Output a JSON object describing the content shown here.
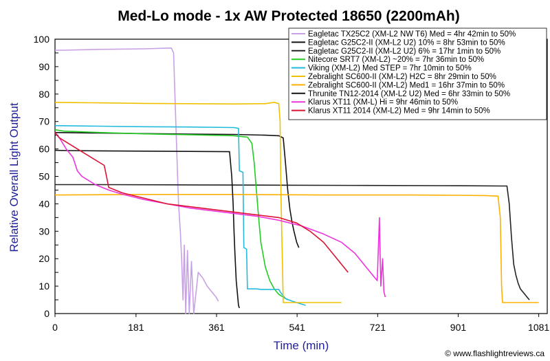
{
  "colors": {
    "axis_label": "#1f1f9a",
    "frame": "#000000",
    "grid": "#000000"
  },
  "chart_data": {
    "type": "line",
    "title": "Med-Lo mode - 1x AW Protected 18650 (2200mAh)",
    "xlabel": "Time (min)",
    "ylabel": "Relative Overall Light Output",
    "credit": "© www.flashlightreviews.ca",
    "xlim": [
      0,
      1100
    ],
    "ylim": [
      0,
      100
    ],
    "xticks": [
      0,
      181,
      361,
      541,
      721,
      901,
      1081
    ],
    "yticks": [
      0,
      5,
      10,
      15,
      20,
      25,
      30,
      35,
      40,
      45,
      50,
      55,
      60,
      65,
      70,
      75,
      80,
      85,
      90,
      95,
      100
    ],
    "grid": false,
    "legend_position": "top-right",
    "series": [
      {
        "name": "Eagletac TX25C2 (XM-L2 NW T6) Med = 4hr 42min to 50%",
        "color": "#c8a0e6",
        "x": [
          0,
          20,
          100,
          200,
          260,
          265,
          268,
          272,
          276,
          280,
          283,
          286,
          289,
          292,
          296,
          300,
          305,
          310,
          320,
          330,
          340,
          350,
          360,
          365
        ],
        "y": [
          96,
          96,
          96.3,
          96.5,
          96.8,
          95,
          80,
          60,
          40,
          30,
          20,
          5,
          25,
          0,
          23,
          0,
          19,
          0,
          15,
          13,
          10,
          8,
          6,
          4.5
        ]
      },
      {
        "name": "Eagletac G25C2-II (XM-L2 U2) 10% = 8hr 53min to 50%",
        "color": "#111111",
        "x": [
          0,
          100,
          200,
          300,
          400,
          470,
          500,
          510,
          515,
          520,
          525,
          530,
          534,
          540,
          545
        ],
        "y": [
          66,
          65.8,
          65.6,
          65.4,
          65.3,
          65,
          64.8,
          64,
          55,
          45,
          38,
          33,
          30,
          26,
          24
        ]
      },
      {
        "name": "Eagletac G25C2-II (XM-L2 U2) 6% = 17hr 1min to 50%",
        "color": "#222222",
        "x": [
          0,
          100,
          300,
          500,
          700,
          900,
          1000,
          1010,
          1015,
          1020,
          1025,
          1030,
          1035,
          1040,
          1045,
          1050,
          1055,
          1060
        ],
        "y": [
          47,
          47,
          46.9,
          46.8,
          46.7,
          46.6,
          46.5,
          46.5,
          40,
          28,
          18,
          14,
          11,
          9,
          8,
          7,
          6,
          5
        ]
      },
      {
        "name": "Nitecore SRT7 (XM-L2) ~20% = 7hr 36min to 50%",
        "color": "#22cc22",
        "x": [
          0,
          20,
          100,
          200,
          300,
          400,
          430,
          440,
          445,
          450,
          455,
          460,
          470,
          480,
          490,
          500,
          520
        ],
        "y": [
          67,
          66.5,
          66,
          65.5,
          65.2,
          64.8,
          64.3,
          62,
          55,
          45,
          35,
          26,
          17,
          12,
          9,
          7,
          5
        ]
      },
      {
        "name": "Viking (XM-L2) Med STEP = 7hr 10min to 50%",
        "color": "#22bbdd",
        "x": [
          0,
          100,
          200,
          300,
          400,
          410,
          412,
          420,
          422,
          428,
          430,
          450,
          460,
          470,
          480,
          490,
          500,
          505,
          515,
          530,
          540,
          550,
          560
        ],
        "y": [
          68.5,
          68.3,
          68.1,
          68,
          67.8,
          67.5,
          52,
          51.5,
          24,
          23.5,
          9,
          9,
          8.8,
          8.8,
          8.8,
          8.8,
          8.8,
          7.5,
          5.5,
          4.5,
          4,
          3.5,
          3
        ]
      },
      {
        "name": "Zebralight SC600-II (XM-L2) H2C = 8hr 29min to 50%",
        "color": "#f0c000",
        "x": [
          0,
          100,
          200,
          300,
          400,
          470,
          490,
          500,
          503,
          505,
          510,
          520,
          540,
          560,
          580,
          600,
          620,
          640
        ],
        "y": [
          77,
          76.8,
          76.6,
          76.5,
          76.4,
          76.5,
          77,
          76.5,
          70,
          43,
          4,
          4,
          4,
          4,
          4,
          4,
          4,
          4
        ]
      },
      {
        "name": "Zebralight SC600-II (XM-L2) Med1 = 16hr 37min to 50%",
        "color": "#ffb000",
        "x": [
          0,
          100,
          200,
          300,
          400,
          500,
          600,
          700,
          800,
          900,
          960,
          990,
          995,
          998,
          1000,
          1020,
          1040,
          1060,
          1081
        ],
        "y": [
          43.2,
          43.3,
          43.4,
          43.4,
          43.4,
          43.3,
          43.2,
          43.2,
          43.2,
          43.1,
          43,
          42.8,
          35,
          10,
          4,
          4,
          4,
          4,
          4
        ]
      },
      {
        "name": "Thrunite TN12-2014 (XM-L2 U2) Med = 6hr 33min to 50%",
        "color": "#111111",
        "x": [
          0,
          30,
          100,
          200,
          300,
          390,
          395,
          398,
          400,
          402,
          405,
          410,
          412
        ],
        "y": [
          59.5,
          59.4,
          59.3,
          59.2,
          59.1,
          59,
          50,
          40,
          30,
          22,
          12,
          3,
          2
        ]
      },
      {
        "name": "Klarus XT11 (XM-L) Hi = 9hr 46min to 50%",
        "color": "#ee33dd",
        "x": [
          0,
          10,
          25,
          40,
          50,
          60,
          90,
          120,
          150,
          200,
          250,
          300,
          350,
          400,
          450,
          500,
          550,
          600,
          640,
          670,
          690,
          710,
          720,
          725,
          728,
          732,
          735,
          738
        ],
        "y": [
          66,
          64,
          60,
          57,
          52,
          50,
          47,
          45,
          43.5,
          41.5,
          40,
          38.5,
          37.5,
          36.5,
          35.5,
          34,
          32,
          29,
          26,
          22,
          18,
          14,
          12,
          35,
          10,
          20,
          8,
          6
        ]
      },
      {
        "name": "Klarus XT11 2014 (XM-L2) Med = 9hr 14min to 50%",
        "color": "#dd1133",
        "x": [
          0,
          10,
          30,
          50,
          80,
          110,
          115,
          120,
          150,
          200,
          250,
          300,
          350,
          400,
          450,
          500,
          540,
          570,
          600,
          620,
          640,
          655
        ],
        "y": [
          66,
          64,
          62,
          60,
          57,
          54,
          50,
          46,
          44,
          42,
          40,
          39,
          38,
          37,
          36,
          35,
          33,
          30,
          26,
          22,
          18,
          15
        ]
      }
    ]
  }
}
